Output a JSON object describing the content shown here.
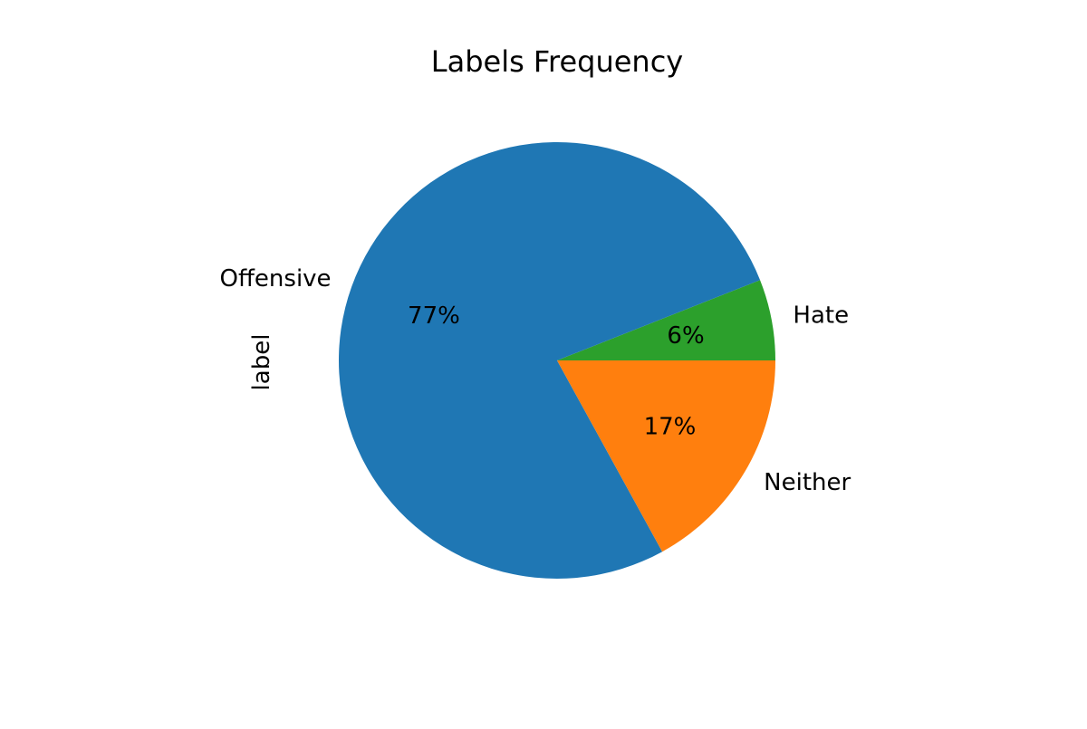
{
  "chart_data": {
    "type": "pie",
    "title": "Labels Frequency",
    "ylabel": "label",
    "categories": [
      "Hate",
      "Offensive",
      "Neither"
    ],
    "values": [
      6,
      77,
      17
    ],
    "value_labels": [
      "6%",
      "77%",
      "17%"
    ],
    "colors": [
      "#2ca02c",
      "#1f77b4",
      "#ff7f0e"
    ],
    "start_angle": 0,
    "direction": "counterclockwise",
    "legend": false
  }
}
